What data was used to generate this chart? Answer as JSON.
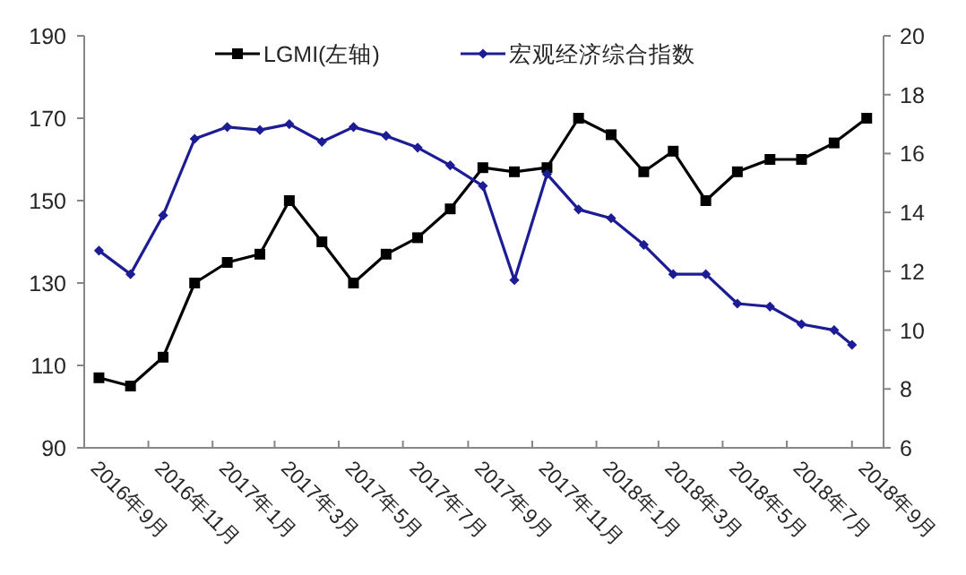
{
  "chart_data": {
    "type": "line",
    "legend": "top",
    "grid": false,
    "xlim": [
      "2016-09-01",
      "2018-10-01"
    ],
    "xticks": [
      {
        "value": "2016-09-01",
        "label": "2016年9月"
      },
      {
        "value": "2016-11-01",
        "label": "2016年11月"
      },
      {
        "value": "2017-01-01",
        "label": "2017年1月"
      },
      {
        "value": "2017-03-01",
        "label": "2017年3月"
      },
      {
        "value": "2017-05-01",
        "label": "2017年5月"
      },
      {
        "value": "2017-07-01",
        "label": "2017年7月"
      },
      {
        "value": "2017-09-01",
        "label": "2017年9月"
      },
      {
        "value": "2017-11-01",
        "label": "2017年11月"
      },
      {
        "value": "2018-01-01",
        "label": "2018年1月"
      },
      {
        "value": "2018-03-01",
        "label": "2018年3月"
      },
      {
        "value": "2018-05-01",
        "label": "2018年5月"
      },
      {
        "value": "2018-07-01",
        "label": "2018年7月"
      },
      {
        "value": "2018-09-01",
        "label": "2018年9月"
      }
    ],
    "ylim": [
      90,
      190
    ],
    "yticks": [
      90,
      110,
      130,
      150,
      170,
      190
    ],
    "y2lim": [
      6,
      20
    ],
    "y2ticks": [
      6,
      8,
      10,
      12,
      14,
      16,
      18,
      20
    ],
    "series": [
      {
        "name": "LGMI(左轴)",
        "color": "#000000",
        "marker": "square",
        "x": [
          "2016-09-15",
          "2016-10-15",
          "2016-11-15",
          "2016-12-15",
          "2017-01-15",
          "2017-02-15",
          "2017-03-15",
          "2017-04-15",
          "2017-05-15",
          "2017-06-15",
          "2017-07-15",
          "2017-08-15",
          "2017-09-15",
          "2017-10-15",
          "2017-11-15",
          "2017-12-15",
          "2018-01-15",
          "2018-02-15",
          "2018-03-15",
          "2018-04-15",
          "2018-05-15",
          "2018-06-15",
          "2018-07-15",
          "2018-08-15",
          "2018-09-15"
        ],
        "values": [
          107,
          105,
          112,
          130,
          135,
          137,
          150,
          140,
          130,
          137,
          141,
          148,
          158,
          157,
          158,
          170,
          166,
          157,
          162,
          150,
          157,
          160,
          160,
          164,
          170
        ]
      },
      {
        "name": "宏观经济综合指数",
        "color": "#1c1c94",
        "marker": "diamond",
        "axis": "y2",
        "x": [
          "2016-09-15",
          "2016-10-15",
          "2016-11-15",
          "2016-12-15",
          "2017-01-15",
          "2017-02-15",
          "2017-03-15",
          "2017-04-15",
          "2017-05-15",
          "2017-06-15",
          "2017-07-15",
          "2017-08-15",
          "2017-09-15",
          "2017-10-15",
          "2017-11-15",
          "2017-12-15",
          "2018-01-15",
          "2018-02-15",
          "2018-03-15",
          "2018-04-15",
          "2018-05-15",
          "2018-06-15",
          "2018-07-15",
          "2018-08-15",
          "2018-09-01"
        ],
        "values": [
          12.7,
          11.9,
          13.9,
          16.5,
          16.9,
          16.8,
          17.0,
          16.4,
          16.9,
          16.6,
          16.2,
          15.6,
          14.9,
          11.7,
          15.3,
          14.1,
          13.8,
          12.9,
          11.9,
          11.9,
          10.9,
          10.8,
          10.2,
          10.0,
          9.5
        ]
      }
    ]
  }
}
